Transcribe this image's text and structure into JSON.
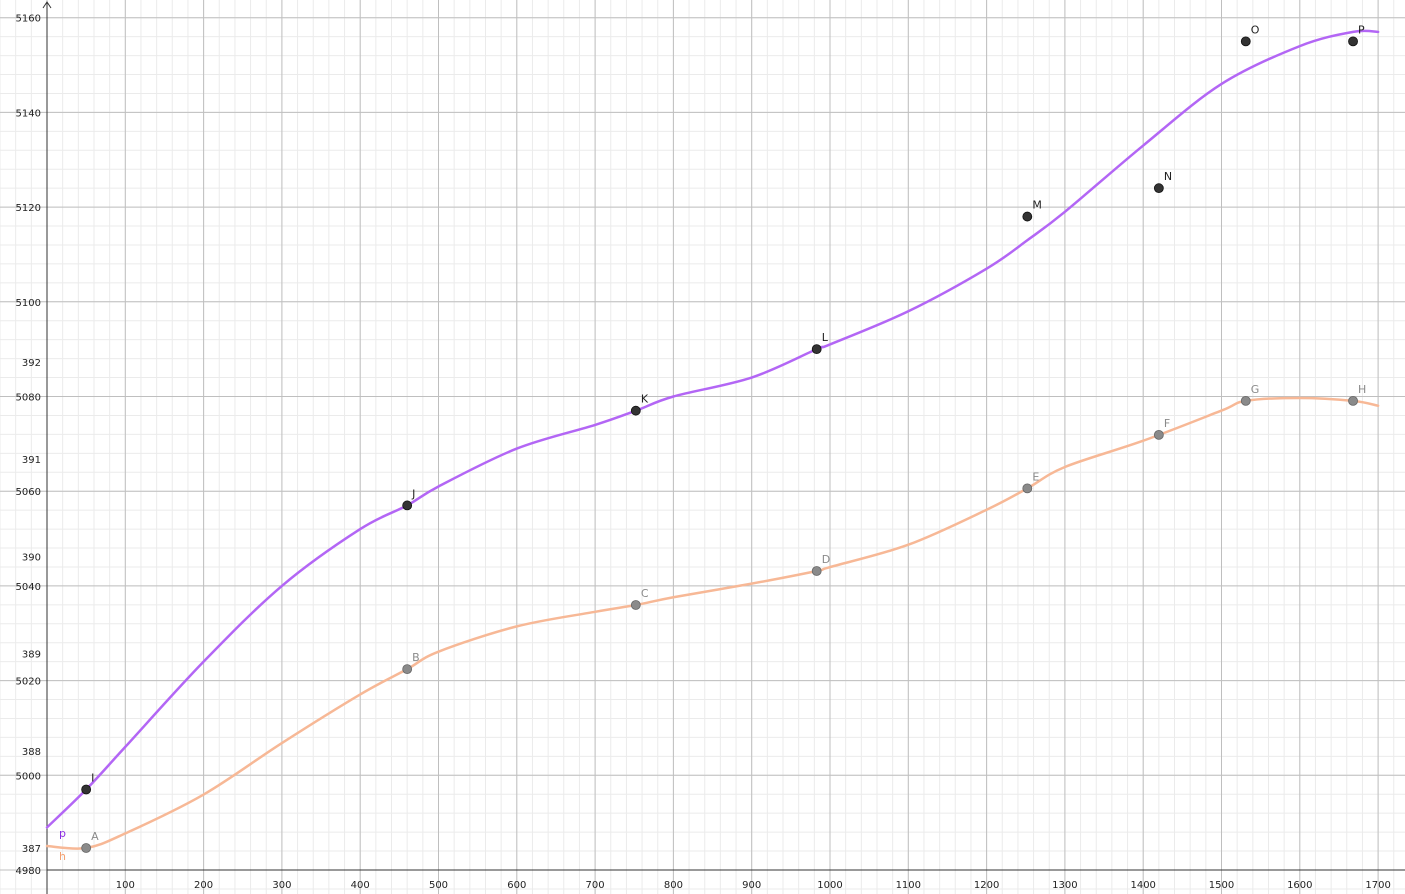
{
  "chart_data": {
    "type": "line",
    "grid": true,
    "colors": {
      "p_curve": "#b366f5",
      "h_curve": "#f7b896",
      "p_points": "#333333",
      "h_points": "#8a8a8a",
      "p_label": "#8a2be2",
      "h_label": "#f4a070",
      "grid_major": "#bfbfbf",
      "grid_minor": "#ebebeb"
    },
    "x_axis": {
      "range": [
        -60,
        1720
      ],
      "ticks": [
        100,
        200,
        300,
        400,
        500,
        600,
        700,
        800,
        900,
        1000,
        1100,
        1200,
        1300,
        1400,
        1500,
        1600,
        1700
      ]
    },
    "y_axis_left": {
      "range": [
        4980,
        5160
      ],
      "ticks": [
        4980,
        5000,
        5020,
        5040,
        5060,
        5080,
        5100,
        5120,
        5140,
        5160
      ]
    },
    "y_axis_right": {
      "range": [
        386.76,
        392.18
      ],
      "ticks": [
        387,
        388,
        389,
        390,
        391,
        392
      ]
    },
    "series": [
      {
        "name": "p",
        "axis": "left",
        "points": [
          {
            "label": "I",
            "x": 50,
            "y": 4997
          },
          {
            "label": "J",
            "x": 460,
            "y": 5057
          },
          {
            "label": "K",
            "x": 752,
            "y": 5077
          },
          {
            "label": "L",
            "x": 983,
            "y": 5090
          },
          {
            "label": "M",
            "x": 1252,
            "y": 5118
          },
          {
            "label": "N",
            "x": 1420,
            "y": 5124
          },
          {
            "label": "O",
            "x": 1531,
            "y": 5155
          },
          {
            "label": "P",
            "x": 1668,
            "y": 5155
          }
        ],
        "curve": [
          [
            0,
            4989
          ],
          [
            50,
            4997
          ],
          [
            100,
            5006
          ],
          [
            200,
            5024
          ],
          [
            300,
            5040
          ],
          [
            400,
            5052
          ],
          [
            460,
            5057
          ],
          [
            500,
            5061
          ],
          [
            600,
            5069
          ],
          [
            700,
            5074
          ],
          [
            752,
            5077
          ],
          [
            800,
            5080
          ],
          [
            900,
            5084
          ],
          [
            983,
            5090
          ],
          [
            1000,
            5091
          ],
          [
            1100,
            5098
          ],
          [
            1200,
            5107
          ],
          [
            1252,
            5113
          ],
          [
            1300,
            5119
          ],
          [
            1400,
            5133
          ],
          [
            1500,
            5146
          ],
          [
            1600,
            5154
          ],
          [
            1668,
            5157
          ],
          [
            1700,
            5157
          ]
        ]
      },
      {
        "name": "h",
        "axis": "right",
        "points": [
          {
            "label": "A",
            "x": 50,
            "y": 387.0
          },
          {
            "label": "B",
            "x": 460,
            "y": 388.84
          },
          {
            "label": "C",
            "x": 752,
            "y": 389.5
          },
          {
            "label": "D",
            "x": 983,
            "y": 389.85
          },
          {
            "label": "E",
            "x": 1252,
            "y": 390.7
          },
          {
            "label": "F",
            "x": 1420,
            "y": 391.25
          },
          {
            "label": "G",
            "x": 1531,
            "y": 391.6
          },
          {
            "label": "H",
            "x": 1668,
            "y": 391.6
          }
        ],
        "curve": [
          [
            0,
            387.02
          ],
          [
            50,
            387.0
          ],
          [
            100,
            387.15
          ],
          [
            200,
            387.55
          ],
          [
            300,
            388.08
          ],
          [
            400,
            388.58
          ],
          [
            460,
            388.84
          ],
          [
            500,
            389.02
          ],
          [
            600,
            389.28
          ],
          [
            700,
            389.43
          ],
          [
            752,
            389.5
          ],
          [
            800,
            389.58
          ],
          [
            900,
            389.72
          ],
          [
            983,
            389.85
          ],
          [
            1000,
            389.89
          ],
          [
            1100,
            390.12
          ],
          [
            1200,
            390.48
          ],
          [
            1252,
            390.7
          ],
          [
            1300,
            390.92
          ],
          [
            1400,
            391.19
          ],
          [
            1500,
            391.5
          ],
          [
            1531,
            391.6
          ],
          [
            1600,
            391.63
          ],
          [
            1668,
            391.6
          ],
          [
            1700,
            391.55
          ]
        ]
      }
    ]
  }
}
